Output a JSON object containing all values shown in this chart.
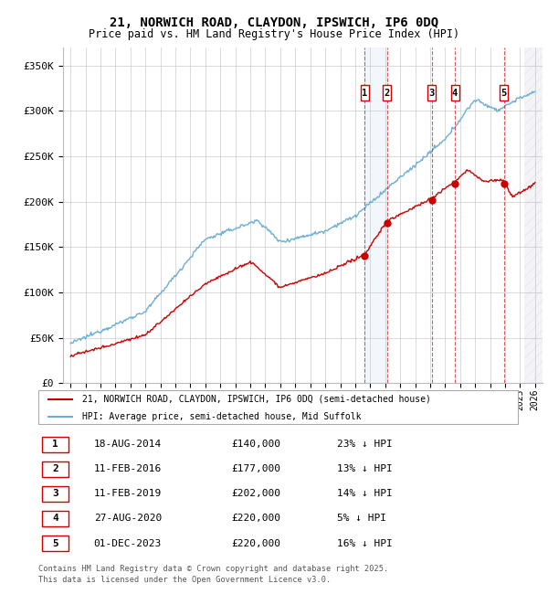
{
  "title1": "21, NORWICH ROAD, CLAYDON, IPSWICH, IP6 0DQ",
  "title2": "Price paid vs. HM Land Registry's House Price Index (HPI)",
  "background_color": "#ffffff",
  "plot_bg_color": "#ffffff",
  "grid_color": "#cccccc",
  "hpi_color": "#6baed6",
  "price_color": "#cc0000",
  "ylim": [
    0,
    370000
  ],
  "yticks": [
    0,
    50000,
    100000,
    150000,
    200000,
    250000,
    300000,
    350000
  ],
  "ytick_labels": [
    "£0",
    "£50K",
    "£100K",
    "£150K",
    "£200K",
    "£250K",
    "£300K",
    "£350K"
  ],
  "xmin": 1994.5,
  "xmax": 2026.5,
  "transactions": [
    {
      "num": 1,
      "date": "18-AUG-2014",
      "year": 2014.62,
      "price": 140000,
      "pct": "23%",
      "label": "1"
    },
    {
      "num": 2,
      "date": "11-FEB-2016",
      "year": 2016.12,
      "price": 177000,
      "pct": "13%",
      "label": "2"
    },
    {
      "num": 3,
      "date": "11-FEB-2019",
      "year": 2019.12,
      "price": 202000,
      "pct": "14%",
      "label": "3"
    },
    {
      "num": 4,
      "date": "27-AUG-2020",
      "year": 2020.65,
      "price": 220000,
      "pct": "5%",
      "label": "4"
    },
    {
      "num": 5,
      "date": "01-DEC-2023",
      "year": 2023.92,
      "price": 220000,
      "pct": "16%",
      "label": "5"
    }
  ],
  "legend_line1": "21, NORWICH ROAD, CLAYDON, IPSWICH, IP6 0DQ (semi-detached house)",
  "legend_line2": "HPI: Average price, semi-detached house, Mid Suffolk",
  "footer1": "Contains HM Land Registry data © Crown copyright and database right 2025.",
  "footer2": "This data is licensed under the Open Government Licence v3.0."
}
